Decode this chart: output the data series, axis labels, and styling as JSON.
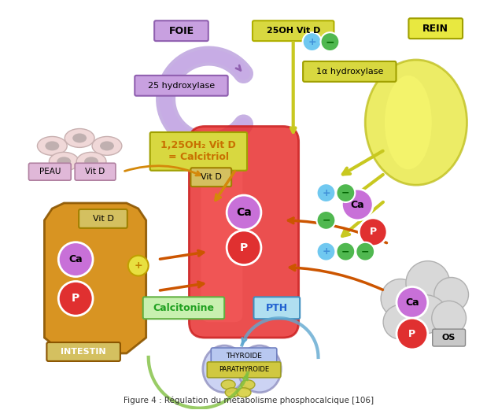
{
  "title": "Figure 4 : Régulation du métabolisme phosphocalcique [106]",
  "bg_color": "#ffffff",
  "labels": {
    "foie": "FOIE",
    "rein": "REIN",
    "peau": "PEAU",
    "intestin": "INTESTIN",
    "thyroide": "THYROIDE",
    "parathyroide": "PARATHYROIDE",
    "calcitonine": "Calcitonine",
    "pth": "PTH",
    "vitd_25oh": "25OH Vit D",
    "vitd_125oh": "1,25OH₂ Vit D\n= Calcitriol",
    "hydroxylase_25": "25 hydroxylase",
    "hydroxylase_1a": "1α hydroxylase",
    "vitd1": "Vit D",
    "vitd2": "Vit D",
    "vitd3": "Vit D",
    "os": "OS",
    "ca": "Ca",
    "p": "P"
  },
  "colors": {
    "foie_box": "#c8a0e0",
    "rein_box": "#e8e840",
    "rein_body": "#e8e840",
    "peau_bg": "#f0d0d0",
    "intestin_body": "#d4880a",
    "blood_vessel": "#e83030",
    "thyroide_box": "#b8c8f0",
    "parathyroide_box": "#d0c040",
    "calcitonine_box": "#80d060",
    "pth_box": "#80c8e8",
    "vitd_box": "#d4c060",
    "vitd25_box": "#d8d840",
    "vitd125_box": "#d8d840",
    "hydroxylase_box": "#c8a0e0",
    "hydroxylase1a_box": "#d8d840",
    "ca_color": "#c870d8",
    "p_color": "#e03030",
    "plus_color": "#4090d8",
    "minus_color": "#50b850",
    "peau_box": "#e0b8d8",
    "os_box": "#c8c8c8",
    "arrow_vitd": "#d4880a",
    "arrow_calcitriol": "#d4880a",
    "arrow_green_calcitonine": "#80b040",
    "arrow_blue_pth": "#60a8d0",
    "arrow_brown": "#804000",
    "calcitonine_text": "#20a020",
    "pth_text": "#2060d0"
  }
}
